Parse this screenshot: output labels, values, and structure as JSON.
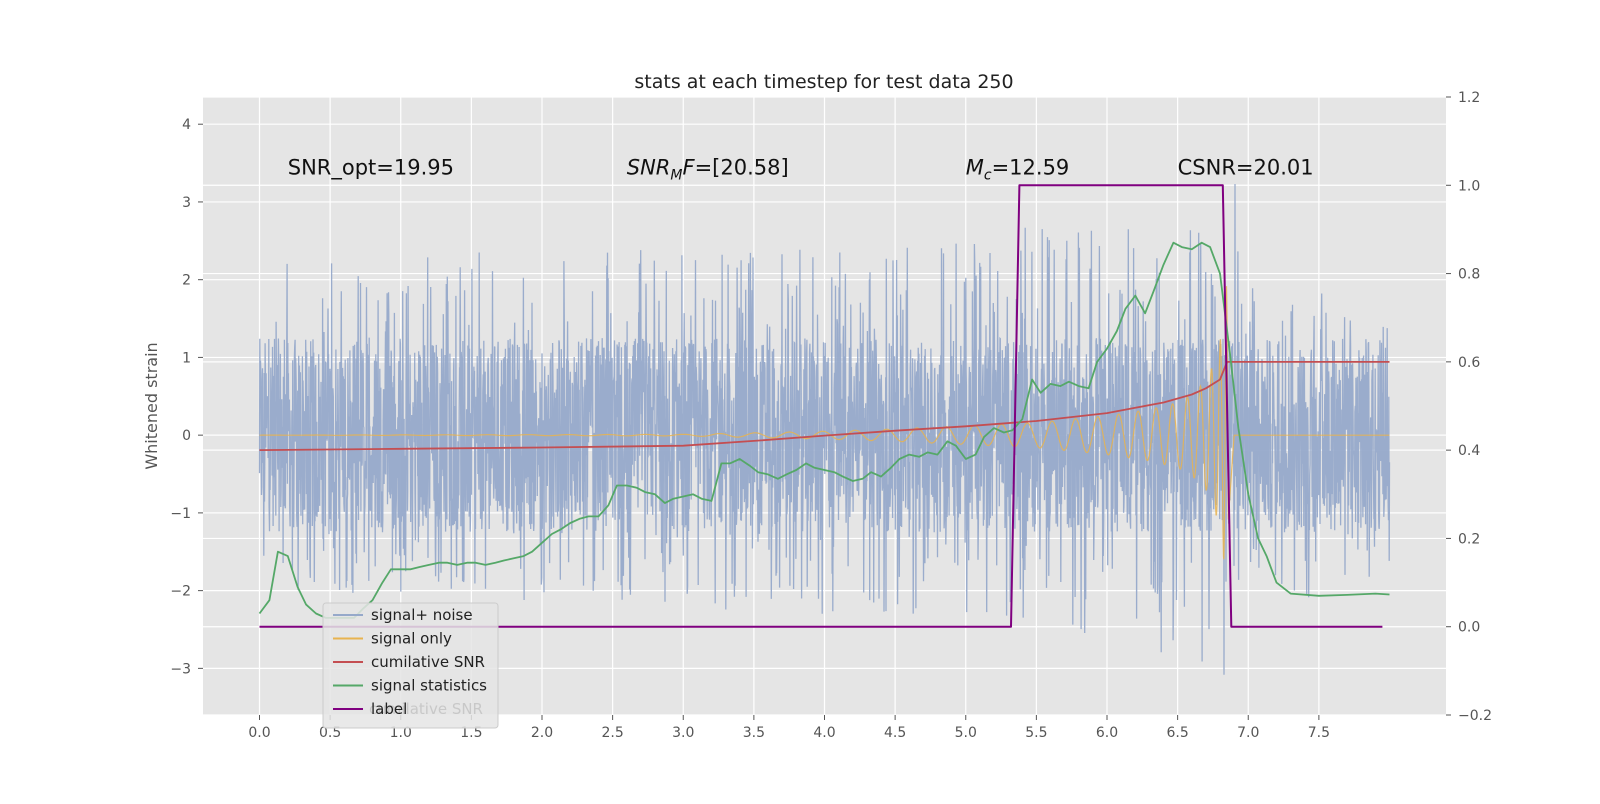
{
  "chart_data": {
    "type": "line",
    "title": "stats at each timestep for test data 250",
    "ylabel": "Whitened strain",
    "xlim": [
      -0.4,
      8.4
    ],
    "ylim": [
      -3.6,
      4.35
    ],
    "y2lim": [
      -0.2,
      1.2
    ],
    "grid": true,
    "legend_position": "lower-left",
    "x_ticks": [
      "0.0",
      "0.5",
      "1.0",
      "1.5",
      "2.0",
      "2.5",
      "3.0",
      "3.5",
      "4.0",
      "4.5",
      "5.0",
      "5.5",
      "6.0",
      "6.5",
      "7.0",
      "7.5"
    ],
    "x_tick_values": [
      0.0,
      0.5,
      1.0,
      1.5,
      2.0,
      2.5,
      3.0,
      3.5,
      4.0,
      4.5,
      5.0,
      5.5,
      6.0,
      6.5,
      7.0,
      7.5
    ],
    "y_ticks": [
      "−3",
      "−2",
      "−1",
      "0",
      "1",
      "2",
      "3",
      "4"
    ],
    "y_tick_values": [
      -3,
      -2,
      -1,
      0,
      1,
      2,
      3,
      4
    ],
    "y2_ticks": [
      "−0.2",
      "0.0",
      "0.2",
      "0.4",
      "0.6",
      "0.8",
      "1.0",
      "1.2"
    ],
    "y2_tick_values": [
      -0.2,
      0.0,
      0.2,
      0.4,
      0.6,
      0.8,
      1.0,
      1.2
    ],
    "annotations": [
      {
        "text": "SNR_opt=19.95",
        "x": 0.2,
        "y": 3.3
      },
      {
        "text": "SNR_MF=[20.58]",
        "x": 2.6,
        "y": 3.3
      },
      {
        "text": "M_c=12.59",
        "x": 5.0,
        "y": 3.3
      },
      {
        "text": "CSNR=20.01",
        "x": 6.5,
        "y": 3.3
      }
    ],
    "series": [
      {
        "name": "signal+ noise",
        "color": "#96A9CA",
        "axis": "left",
        "description": "whitened noise with injected chirp, t=0..8",
        "envelope_x": [
          0.0,
          1.0,
          2.0,
          3.0,
          4.0,
          5.0,
          5.5,
          6.0,
          6.5,
          6.8,
          6.85,
          7.0,
          8.0
        ],
        "envelope_upper": [
          2.2,
          2.3,
          2.4,
          2.4,
          2.4,
          2.5,
          2.7,
          2.7,
          2.6,
          3.0,
          4.0,
          2.0,
          1.7
        ],
        "envelope_lower": [
          -2.1,
          -2.1,
          -2.2,
          -2.3,
          -2.3,
          -2.4,
          -2.5,
          -2.6,
          -2.9,
          -3.1,
          -3.3,
          -2.2,
          -2.0
        ]
      },
      {
        "name": "signal only",
        "color": "#E8B34F",
        "axis": "left",
        "envelope_x": [
          0.0,
          3.0,
          3.5,
          4.0,
          4.5,
          5.0,
          5.5,
          6.0,
          6.3,
          6.5,
          6.6,
          6.7,
          6.75,
          6.8,
          6.85,
          6.9,
          8.0
        ],
        "envelope_amp": [
          0.0,
          0.01,
          0.03,
          0.05,
          0.08,
          0.12,
          0.16,
          0.25,
          0.33,
          0.42,
          0.52,
          0.7,
          0.9,
          1.2,
          2.0,
          0.0,
          0.0
        ]
      },
      {
        "name": "cumilative SNR",
        "color": "#C44E52",
        "axis": "right",
        "x": [
          0.0,
          1.0,
          2.0,
          3.0,
          3.5,
          4.0,
          4.5,
          5.0,
          5.5,
          6.0,
          6.2,
          6.4,
          6.6,
          6.7,
          6.8,
          6.85,
          8.0
        ],
        "values": [
          0.4,
          0.403,
          0.406,
          0.41,
          0.421,
          0.433,
          0.444,
          0.454,
          0.466,
          0.484,
          0.496,
          0.508,
          0.526,
          0.54,
          0.56,
          0.6,
          0.6
        ]
      },
      {
        "name": "signal statistics",
        "color": "#55A868",
        "axis": "right",
        "x": [
          0.0,
          0.07,
          0.13,
          0.2,
          0.27,
          0.33,
          0.4,
          0.47,
          0.53,
          0.6,
          0.67,
          0.73,
          0.8,
          0.87,
          0.93,
          1.0,
          1.07,
          1.13,
          1.2,
          1.27,
          1.33,
          1.4,
          1.47,
          1.53,
          1.6,
          1.67,
          1.73,
          1.8,
          1.87,
          1.93,
          2.0,
          2.07,
          2.13,
          2.2,
          2.27,
          2.33,
          2.4,
          2.47,
          2.53,
          2.6,
          2.67,
          2.73,
          2.8,
          2.87,
          2.93,
          3.0,
          3.07,
          3.13,
          3.2,
          3.27,
          3.33,
          3.4,
          3.47,
          3.53,
          3.6,
          3.67,
          3.73,
          3.8,
          3.87,
          3.93,
          4.0,
          4.07,
          4.13,
          4.2,
          4.27,
          4.33,
          4.4,
          4.47,
          4.53,
          4.6,
          4.67,
          4.73,
          4.8,
          4.87,
          4.93,
          5.0,
          5.07,
          5.13,
          5.2,
          5.27,
          5.33,
          5.4,
          5.47,
          5.53,
          5.6,
          5.67,
          5.73,
          5.8,
          5.87,
          5.93,
          6.0,
          6.07,
          6.13,
          6.2,
          6.27,
          6.33,
          6.4,
          6.47,
          6.53,
          6.6,
          6.67,
          6.73,
          6.8,
          6.87,
          6.93,
          7.0,
          7.07,
          7.13,
          7.2,
          7.3,
          7.5,
          7.7,
          7.9,
          8.0
        ],
        "values": [
          0.03,
          0.06,
          0.17,
          0.16,
          0.09,
          0.05,
          0.03,
          0.02,
          0.02,
          0.02,
          0.02,
          0.04,
          0.06,
          0.1,
          0.13,
          0.13,
          0.13,
          0.135,
          0.14,
          0.145,
          0.145,
          0.14,
          0.145,
          0.145,
          0.14,
          0.145,
          0.15,
          0.155,
          0.16,
          0.17,
          0.19,
          0.21,
          0.22,
          0.235,
          0.245,
          0.25,
          0.25,
          0.275,
          0.32,
          0.32,
          0.315,
          0.305,
          0.3,
          0.28,
          0.29,
          0.295,
          0.3,
          0.29,
          0.285,
          0.37,
          0.37,
          0.38,
          0.365,
          0.35,
          0.345,
          0.335,
          0.345,
          0.355,
          0.37,
          0.36,
          0.355,
          0.35,
          0.34,
          0.33,
          0.335,
          0.35,
          0.34,
          0.36,
          0.38,
          0.39,
          0.385,
          0.395,
          0.39,
          0.42,
          0.41,
          0.38,
          0.39,
          0.43,
          0.45,
          0.44,
          0.445,
          0.47,
          0.56,
          0.53,
          0.55,
          0.545,
          0.555,
          0.545,
          0.54,
          0.6,
          0.63,
          0.67,
          0.72,
          0.75,
          0.71,
          0.76,
          0.82,
          0.87,
          0.86,
          0.855,
          0.87,
          0.86,
          0.8,
          0.62,
          0.45,
          0.3,
          0.2,
          0.16,
          0.1,
          0.075,
          0.07,
          0.072,
          0.075,
          0.073
        ],
        "x_end": 7.95
      },
      {
        "name": "label",
        "color": "#800080",
        "axis": "right",
        "x": [
          0.0,
          5.32,
          5.38,
          6.82,
          6.88,
          7.95
        ],
        "values": [
          0.0,
          0.0,
          1.0,
          1.0,
          0.0,
          0.0
        ]
      }
    ],
    "legend_ghost_text": "cumilative SNR"
  },
  "colors": {
    "plot_background": "#E5E5E5",
    "grid": "#FFFFFF"
  }
}
